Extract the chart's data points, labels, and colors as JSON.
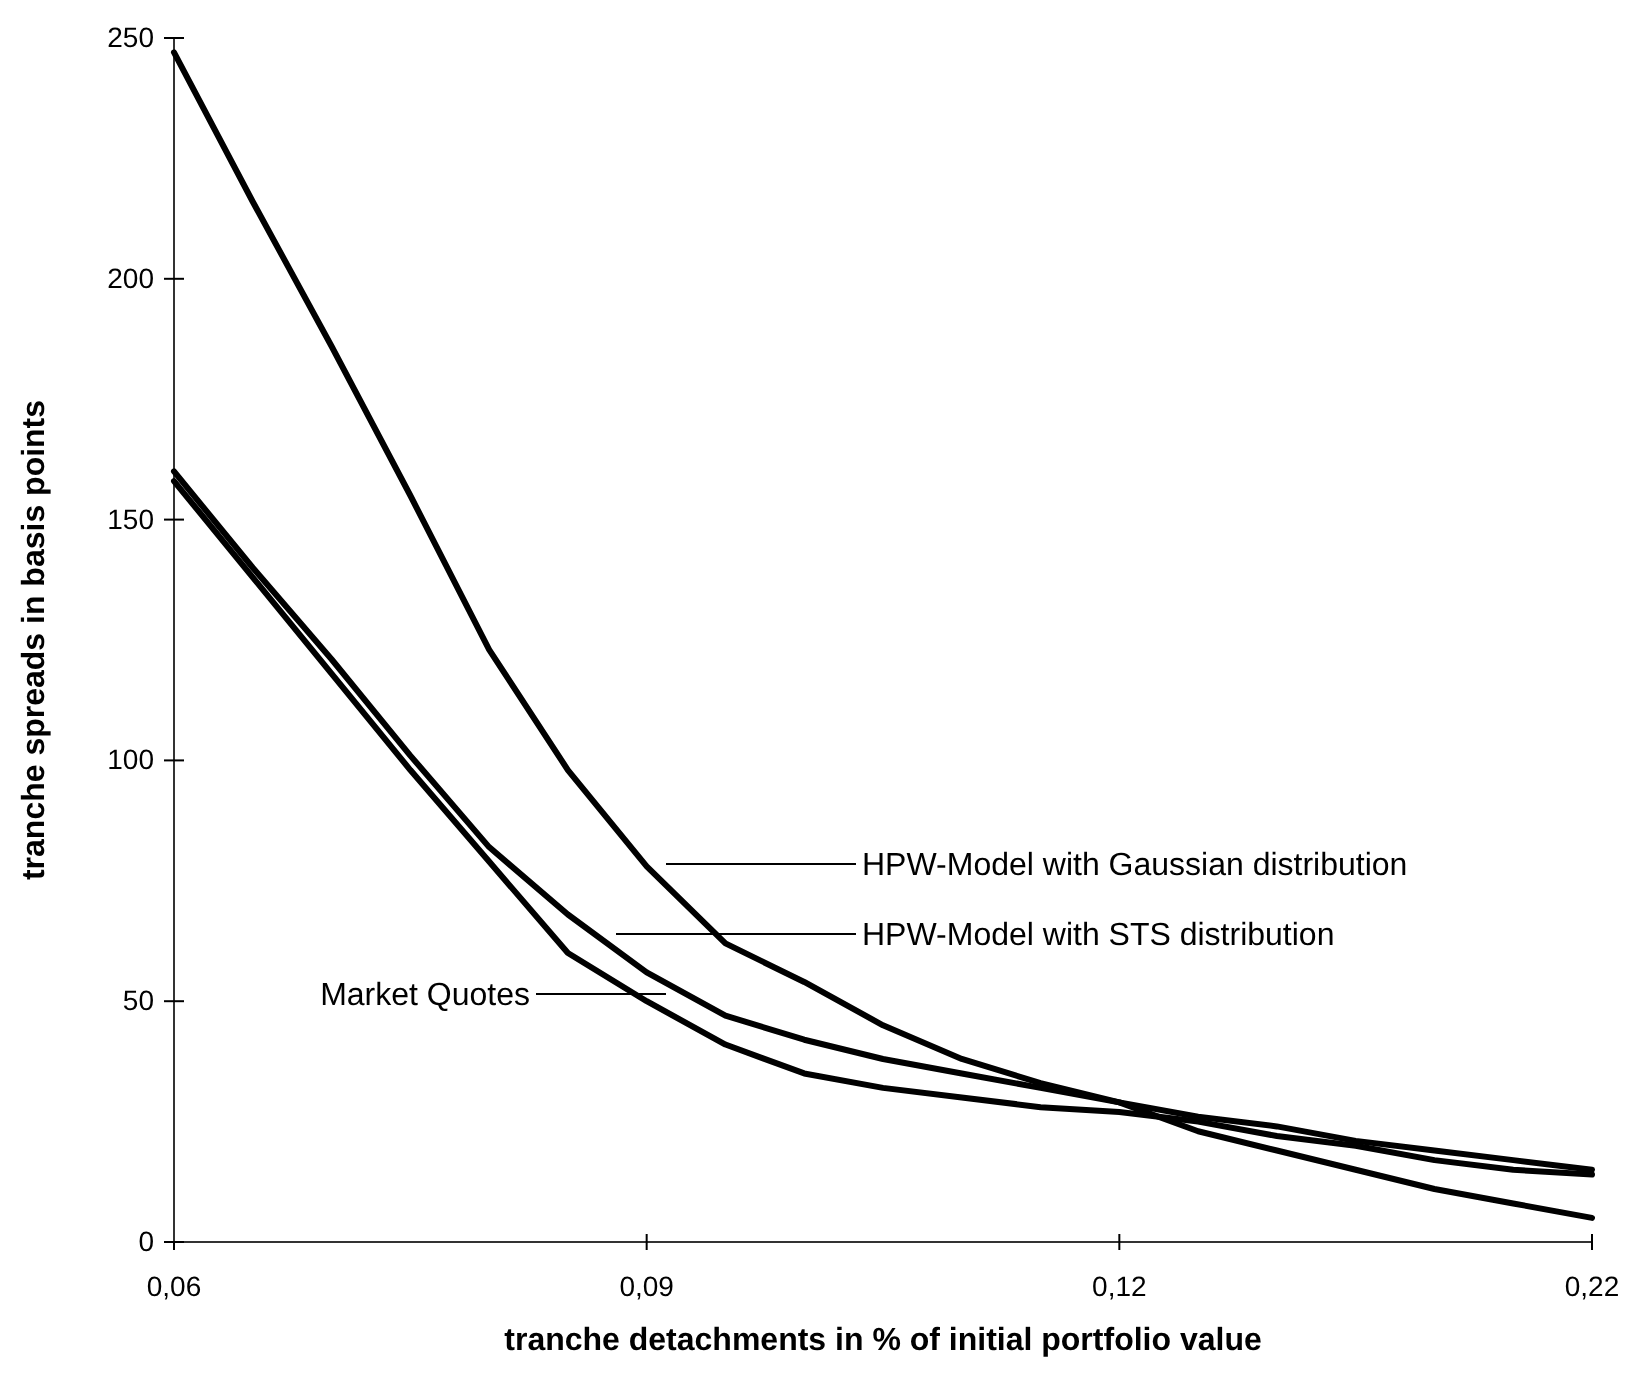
{
  "chart_data": {
    "type": "line",
    "xlabel": "tranche detachments in % of initial portfolio value",
    "ylabel": "tranche spreads in basis points",
    "categories": [
      "0,06",
      null,
      null,
      null,
      null,
      null,
      "0,09",
      null,
      null,
      null,
      null,
      null,
      "0,12",
      null,
      null,
      null,
      null,
      null,
      "0,22"
    ],
    "ylim": [
      0,
      250
    ],
    "yticks": [
      0,
      50,
      100,
      150,
      200,
      250
    ],
    "grid": false,
    "legend": false,
    "marker": "none",
    "line_style": "solid",
    "series": [
      {
        "color": "#000000",
        "values": [
          247,
          216,
          186,
          155,
          123,
          98,
          78,
          62,
          54,
          45,
          38,
          33,
          29,
          23,
          19,
          15,
          11,
          8,
          5
        ]
      },
      {
        "color": "#000000",
        "values": [
          160,
          140,
          121,
          101,
          82,
          68,
          56,
          47,
          42,
          38,
          35,
          32,
          29,
          26,
          24,
          21,
          19,
          17,
          15
        ]
      },
      {
        "color": "#000000",
        "values": [
          158,
          138,
          118,
          98,
          79,
          60,
          50,
          41,
          35,
          32,
          30,
          28,
          27,
          25,
          22,
          20,
          17,
          15,
          14
        ]
      }
    ],
    "annotations": [
      "HPW-Model with Gaussian distribution",
      "HPW-Model with STS distribution",
      "Market Quotes"
    ]
  }
}
